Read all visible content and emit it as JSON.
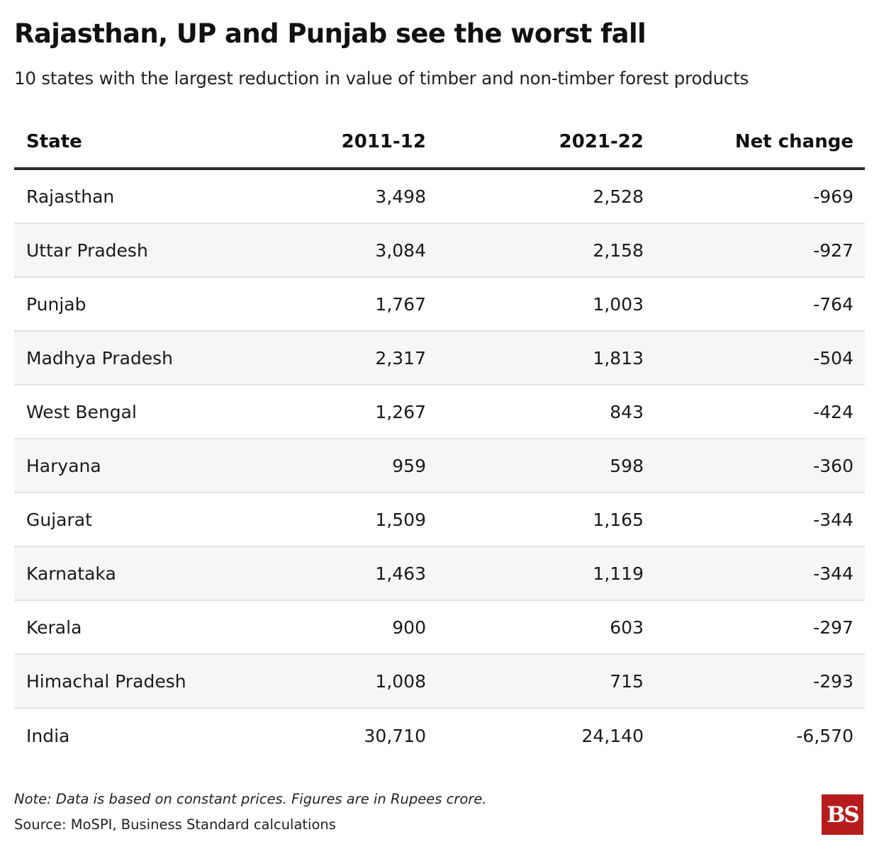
{
  "title": "Rajasthan, UP and Punjab see the worst fall",
  "subtitle": "10 states with the largest reduction in value of timber and non-timber forest products",
  "chart_data": {
    "type": "table",
    "columns": [
      "State",
      "2011-12",
      "2021-22",
      "Net change"
    ],
    "rows": [
      {
        "state": "Rajasthan",
        "y2011": "3,498",
        "y2021": "2,528",
        "change": "-969"
      },
      {
        "state": "Uttar Pradesh",
        "y2011": "3,084",
        "y2021": "2,158",
        "change": "-927"
      },
      {
        "state": "Punjab",
        "y2011": "1,767",
        "y2021": "1,003",
        "change": "-764"
      },
      {
        "state": "Madhya Pradesh",
        "y2011": "2,317",
        "y2021": "1,813",
        "change": "-504"
      },
      {
        "state": "West Bengal",
        "y2011": "1,267",
        "y2021": "843",
        "change": "-424"
      },
      {
        "state": "Haryana",
        "y2011": "959",
        "y2021": "598",
        "change": "-360"
      },
      {
        "state": "Gujarat",
        "y2011": "1,509",
        "y2021": "1,165",
        "change": "-344"
      },
      {
        "state": "Karnataka",
        "y2011": "1,463",
        "y2021": "1,119",
        "change": "-344"
      },
      {
        "state": "Kerala",
        "y2011": "900",
        "y2021": "603",
        "change": "-297"
      },
      {
        "state": "Himachal Pradesh",
        "y2011": "1,008",
        "y2021": "715",
        "change": "-293"
      },
      {
        "state": "India",
        "y2011": "30,710",
        "y2021": "24,140",
        "change": "-6,570"
      }
    ]
  },
  "note": "Note: Data is based on constant prices. Figures are in Rupees crore.",
  "source": "Source: MoSPI, Business Standard calculations",
  "logo_text": "BS",
  "colors": {
    "logo_bg": "#b71c1c",
    "row_shade": "#f6f6f6",
    "header_rule": "#2a2a2a"
  }
}
